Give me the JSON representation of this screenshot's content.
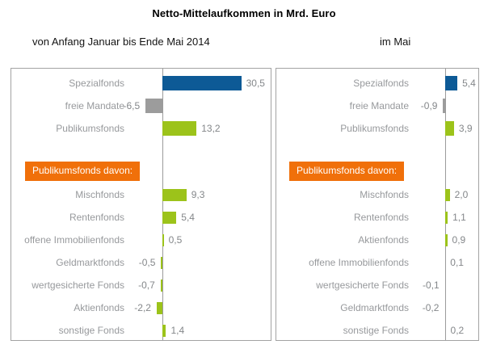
{
  "title": "Netto-Mittelaufkommen in Mrd. Euro",
  "colors": {
    "blue": "#0d5a96",
    "gray": "#9c9c9c",
    "green": "#9cc31a",
    "header_bg": "#f0700a",
    "border": "#a3a3a3",
    "axis": "#9b9b9b",
    "label_text": "#97999c",
    "value_text": "#84878a"
  },
  "chart_data": [
    {
      "type": "bar",
      "orientation": "horizontal",
      "subtitle": "von Anfang Januar bis Ende Mai 2014",
      "unit": "Mrd. Euro",
      "axis": {
        "zero_line": true,
        "gridlines": false,
        "value_labels": true
      },
      "sections": [
        {
          "header": null,
          "rows": [
            {
              "label": "Spezialfonds",
              "value": 30.5,
              "display": "30,5",
              "color": "blue"
            },
            {
              "label": "freie Mandate",
              "value": -6.5,
              "display": "-6,5",
              "color": "gray"
            },
            {
              "label": "Publikumsfonds",
              "value": 13.2,
              "display": "13,2",
              "color": "green"
            }
          ]
        },
        {
          "header": "Publikumsfonds davon:",
          "rows": [
            {
              "label": "Mischfonds",
              "value": 9.3,
              "display": "9,3",
              "color": "green"
            },
            {
              "label": "Rentenfonds",
              "value": 5.4,
              "display": "5,4",
              "color": "green"
            },
            {
              "label": "offene Immobilienfonds",
              "value": 0.5,
              "display": "0,5",
              "color": "green"
            },
            {
              "label": "Geldmarktfonds",
              "value": -0.5,
              "display": "-0,5",
              "color": "green"
            },
            {
              "label": "wertgesicherte Fonds",
              "value": -0.7,
              "display": "-0,7",
              "color": "green"
            },
            {
              "label": "Aktienfonds",
              "value": -2.2,
              "display": "-2,2",
              "color": "green"
            },
            {
              "label": "sonstige Fonds",
              "value": 1.4,
              "display": "1,4",
              "color": "green"
            }
          ]
        }
      ]
    },
    {
      "type": "bar",
      "orientation": "horizontal",
      "subtitle": "im Mai",
      "unit": "Mrd. Euro",
      "axis": {
        "zero_line": true,
        "gridlines": false,
        "value_labels": true
      },
      "sections": [
        {
          "header": null,
          "rows": [
            {
              "label": "Spezialfonds",
              "value": 5.4,
              "display": "5,4",
              "color": "blue"
            },
            {
              "label": "freie Mandate",
              "value": -0.9,
              "display": "-0,9",
              "color": "gray"
            },
            {
              "label": "Publikumsfonds",
              "value": 3.9,
              "display": "3,9",
              "color": "green"
            }
          ]
        },
        {
          "header": "Publikumsfonds davon:",
          "rows": [
            {
              "label": "Mischfonds",
              "value": 2.0,
              "display": "2,0",
              "color": "green"
            },
            {
              "label": "Rentenfonds",
              "value": 1.1,
              "display": "1,1",
              "color": "green"
            },
            {
              "label": "Aktienfonds",
              "value": 0.9,
              "display": "0,9",
              "color": "green"
            },
            {
              "label": "offene Immobilienfonds",
              "value": 0.1,
              "display": "0,1",
              "color": "green"
            },
            {
              "label": "wertgesicherte Fonds",
              "value": -0.1,
              "display": "-0,1",
              "color": "green"
            },
            {
              "label": "Geldmarktfonds",
              "value": -0.2,
              "display": "-0,2",
              "color": "green"
            },
            {
              "label": "sonstige Fonds",
              "value": 0.2,
              "display": "0,2",
              "color": "green"
            }
          ]
        }
      ]
    }
  ]
}
